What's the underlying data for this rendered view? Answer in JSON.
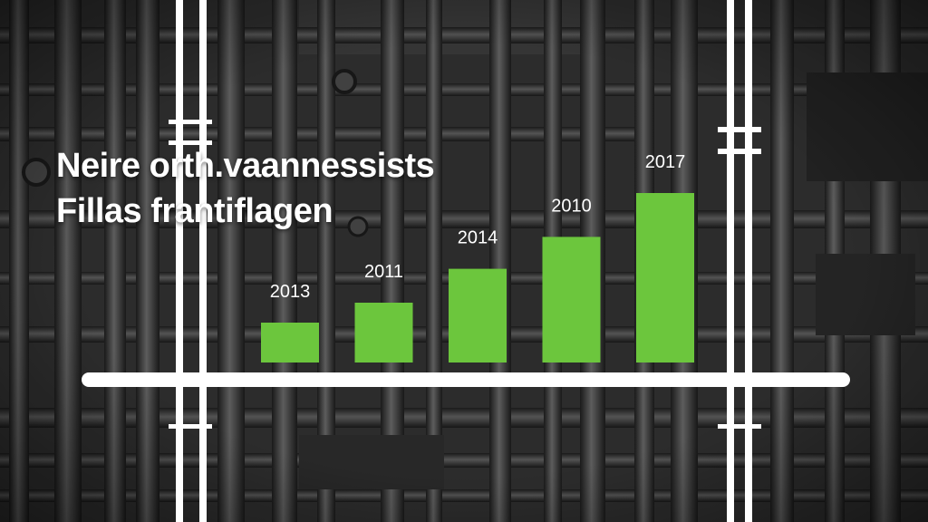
{
  "colors": {
    "bar": "#6cc63d",
    "axis": "#ffffff",
    "label": "#ffffff"
  },
  "chart_data": {
    "type": "bar",
    "title": [
      "Neire orth.vaannessists",
      "Fillas frantiflagen"
    ],
    "categories": [
      "2013",
      "2011",
      "2014",
      "2010",
      "2017"
    ],
    "values": [
      2.0,
      3.0,
      4.7,
      6.3,
      8.5
    ],
    "xlabel": "",
    "ylabel": "",
    "ylim": [
      0,
      10
    ],
    "grid": false,
    "legend": "none"
  }
}
